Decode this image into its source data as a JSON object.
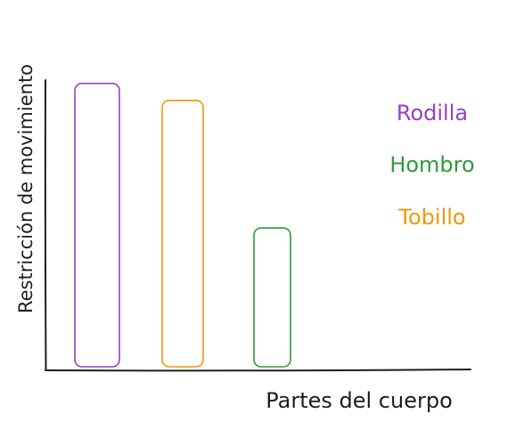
{
  "chart_data": {
    "type": "bar",
    "title": "",
    "xlabel": "Partes del cuerpo",
    "ylabel": "Restricción de movimiento",
    "categories": [
      "Rodilla",
      "Tobillo",
      "Hombro"
    ],
    "values": [
      100,
      94,
      49
    ],
    "ylim": [
      0,
      120
    ],
    "grid": false,
    "legend": {
      "placement": "top-right",
      "entries": [
        "Rodilla",
        "Hombro",
        "Tobillo"
      ]
    },
    "series": [
      {
        "values": [
          100,
          94,
          49
        ]
      }
    ],
    "colors": {
      "Rodilla": "#9b3fc0",
      "Hombro": "#2f9a3c",
      "Tobillo": "#f0960f",
      "axis": "#1e1e1e",
      "text": "#1e1e1e"
    }
  }
}
